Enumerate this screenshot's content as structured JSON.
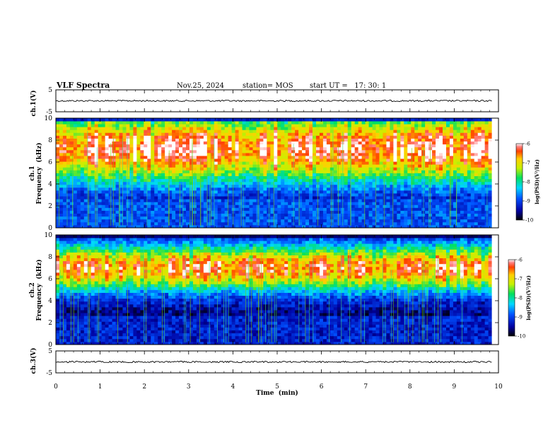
{
  "header": {
    "title": "VLF Spectra",
    "date": "Nov.25, 2024",
    "station": "station= MOS",
    "start": "start UT =   17: 30: 1"
  },
  "chart_data": [
    {
      "type": "line",
      "panel": "ch1-waveform",
      "ylabel": "ch.1(V)",
      "ylim": [
        -5,
        5
      ],
      "y_ticks": [
        "5",
        "-5"
      ],
      "xlim": [
        0,
        10
      ],
      "description_level": 0
    },
    {
      "type": "heatmap",
      "panel": "ch1-spectrogram",
      "ylabel": "ch.1\nFrequency (kHz)",
      "ylabel_lines": [
        "ch.1",
        "Frequency  (kHz)"
      ],
      "ylim": [
        0,
        10
      ],
      "y_ticks": [
        "0",
        "2",
        "4",
        "6",
        "8",
        "10"
      ],
      "xlim": [
        0,
        10
      ],
      "colorbar": {
        "label": "log(PSD)(V²/Hz)",
        "range": [
          -10,
          -6
        ],
        "ticks": [
          "-6",
          "-7",
          "-8",
          "-9",
          "-10"
        ]
      },
      "dominant_band_khz": [
        5,
        9.5
      ],
      "peak_log_psd": -6.3
    },
    {
      "type": "heatmap",
      "panel": "ch2-spectrogram",
      "ylabel_lines": [
        "ch.2",
        "Frequency  (kHz)"
      ],
      "ylim": [
        0,
        10
      ],
      "y_ticks": [
        "0",
        "2",
        "4",
        "6",
        "8",
        "10"
      ],
      "xlim": [
        0,
        10
      ],
      "colorbar": {
        "label": "log(PSD)(V²/Hz)",
        "range": [
          -10,
          -6
        ],
        "ticks": [
          "-6",
          "-7",
          "-8",
          "-9",
          "-10"
        ]
      },
      "dominant_band_khz": [
        5.5,
        8.5
      ],
      "peak_log_psd": -6.6
    },
    {
      "type": "line",
      "panel": "ch3-waveform",
      "ylabel": "ch.3(V)",
      "ylim": [
        -5,
        5
      ],
      "y_ticks": [
        "5",
        "-5"
      ],
      "xlim": [
        0,
        10
      ],
      "xlabel": "Time  (min)",
      "x_ticks": [
        "0",
        "1",
        "2",
        "3",
        "4",
        "5",
        "6",
        "7",
        "8",
        "9",
        "10"
      ],
      "description_level": 0
    }
  ]
}
